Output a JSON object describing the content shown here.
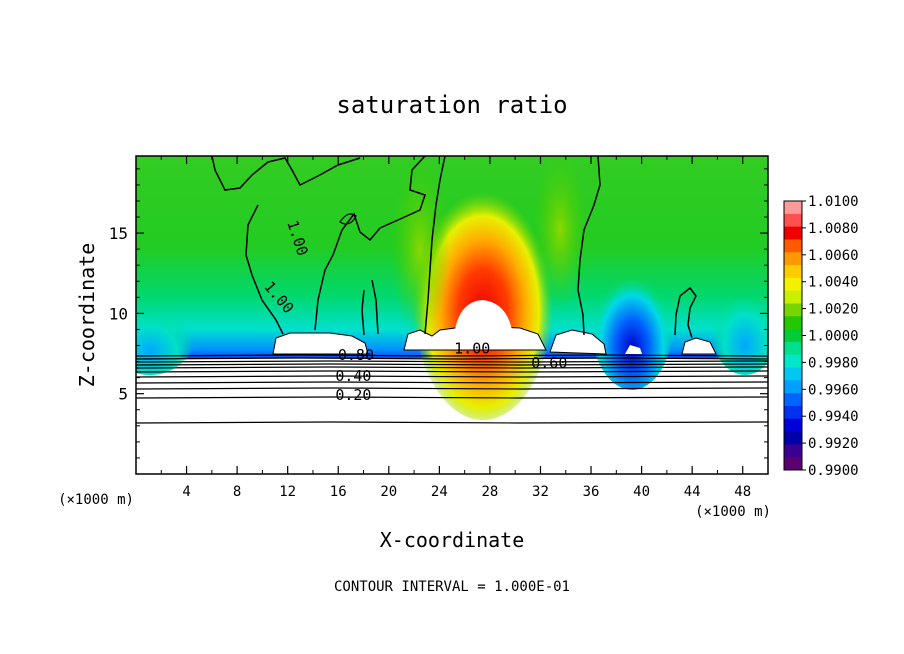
{
  "chart_data": {
    "type": "heatmap",
    "title": "saturation ratio",
    "xlabel": "X-coordinate",
    "ylabel": "Z-coordinate",
    "x_unit": "(×1000 m)",
    "y_unit": "(×1000 m)",
    "xlim": [
      0,
      50
    ],
    "ylim": [
      0,
      19.8
    ],
    "x_ticks": [
      4,
      8,
      12,
      16,
      20,
      24,
      28,
      32,
      36,
      40,
      44,
      48
    ],
    "y_ticks": [
      5,
      10,
      15
    ],
    "footer": "CONTOUR INTERVAL = 1.000E-01",
    "colorbar": {
      "range": [
        0.99,
        1.01
      ],
      "tick_labels": [
        "1.0100",
        "1.0080",
        "1.0060",
        "1.0040",
        "1.0020",
        "1.0000",
        "0.9980",
        "0.9960",
        "0.9940",
        "0.9920",
        "0.9900"
      ],
      "colors": [
        "#ff9a9a",
        "#ff5050",
        "#ee0000",
        "#ff5a00",
        "#ff9900",
        "#ffcc00",
        "#f2f200",
        "#c8f000",
        "#7ad400",
        "#22c800",
        "#00cc38",
        "#00e08c",
        "#00e8c8",
        "#00c8f0",
        "#00a0ff",
        "#0064ff",
        "#0030f0",
        "#0000d8",
        "#0000aa",
        "#3a0090",
        "#5a0070"
      ]
    },
    "contour_labels": [
      {
        "text": "1.00",
        "x": 12.4,
        "z": 14.6,
        "rot": 72
      },
      {
        "text": "1.00",
        "x": 11.0,
        "z": 10.8,
        "rot": 50
      },
      {
        "text": "0.80",
        "x": 17.4,
        "z": 7.1,
        "rot": 0
      },
      {
        "text": "1.00",
        "x": 26.6,
        "z": 7.5,
        "rot": 0
      },
      {
        "text": "0.60",
        "x": 32.7,
        "z": 6.6,
        "rot": 0
      },
      {
        "text": "0.40",
        "x": 17.2,
        "z": 5.8,
        "rot": 0
      },
      {
        "text": "0.20",
        "x": 17.2,
        "z": 4.6,
        "rot": 0
      }
    ]
  }
}
